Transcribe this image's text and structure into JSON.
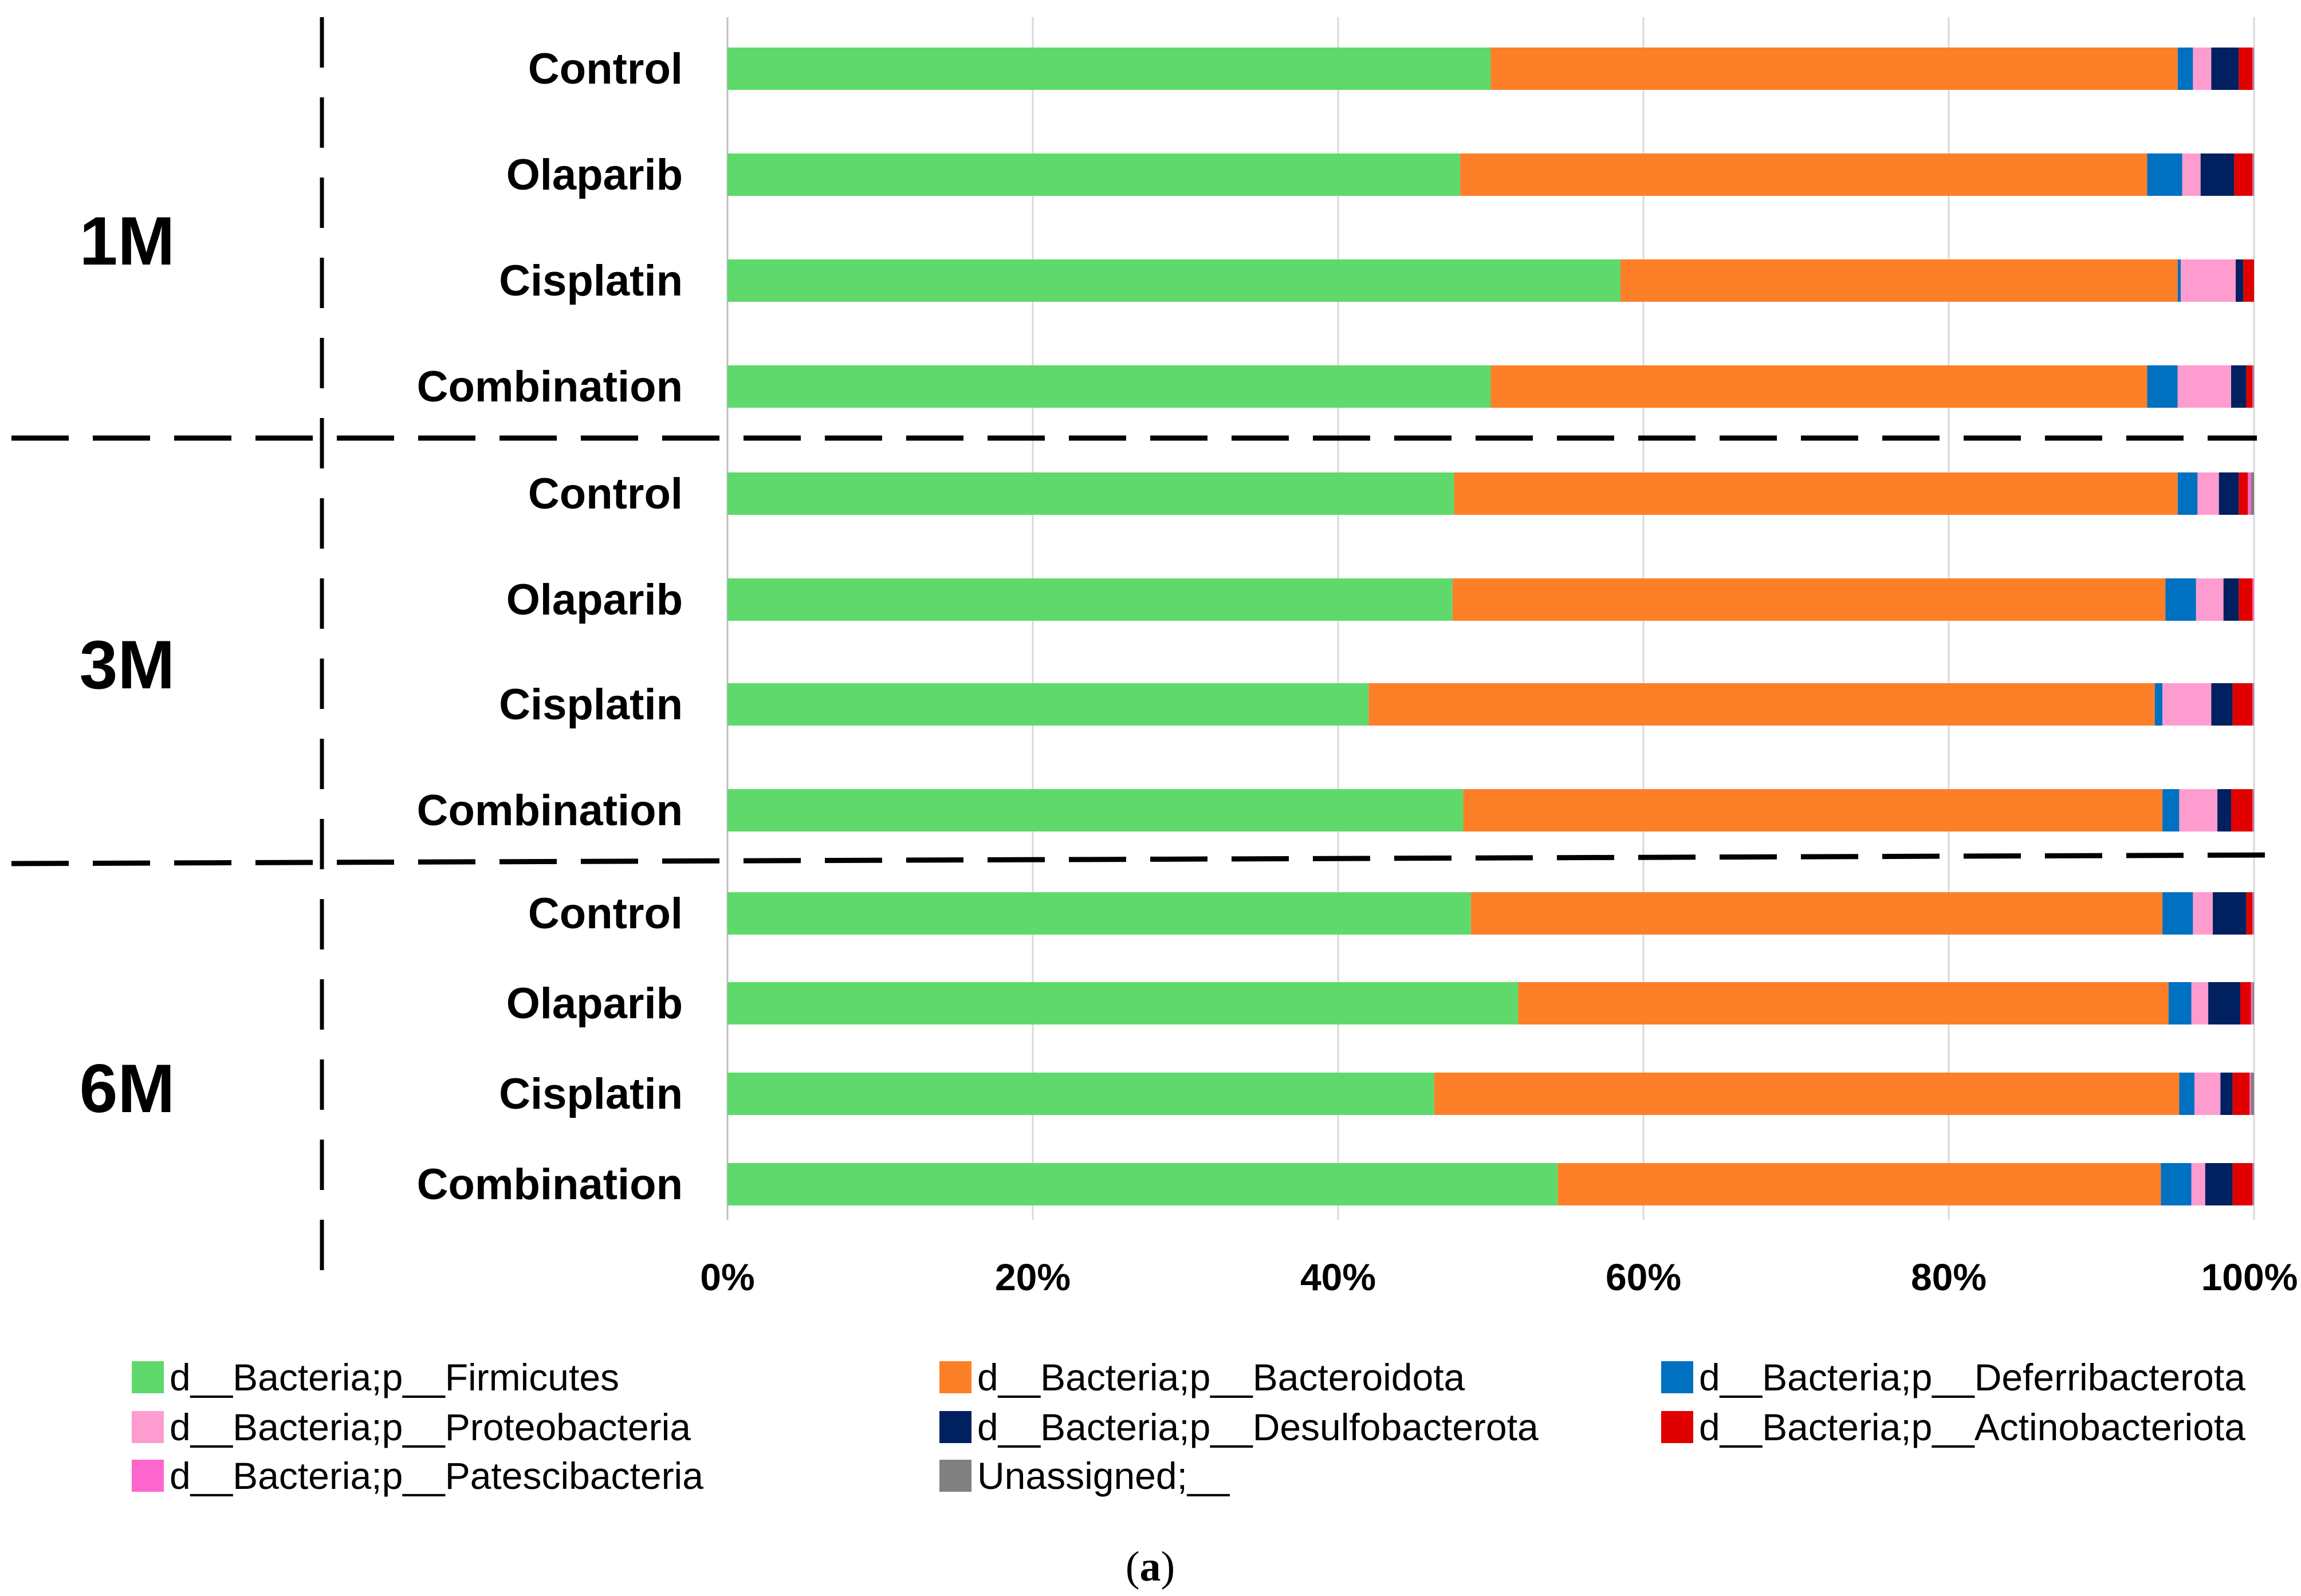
{
  "chart_data": {
    "type": "bar",
    "orientation": "horizontal",
    "stacked": "percent",
    "xlim": [
      0,
      100
    ],
    "x_ticks": [
      "0%",
      "20%",
      "40%",
      "60%",
      "80%",
      "100%"
    ],
    "grid": true,
    "legend_position": "bottom",
    "groups": [
      {
        "label": "1M",
        "categories": [
          "Control",
          "Olaparib",
          "Cisplatin",
          "Combination"
        ]
      },
      {
        "label": "3M",
        "categories": [
          "Control",
          "Olaparib",
          "Cisplatin",
          "Combination"
        ]
      },
      {
        "label": "6M",
        "categories": [
          "Control",
          "Olaparib",
          "Cisplatin",
          "Combination"
        ]
      }
    ],
    "series": [
      {
        "name": "d__Bacteria;p__Firmicutes",
        "color": "#5fd96b",
        "values": [
          50.0,
          48.0,
          58.5,
          50.0,
          47.6,
          47.5,
          42.0,
          48.2,
          48.7,
          51.8,
          46.3,
          54.4
        ]
      },
      {
        "name": "d__Bacteria;p__Bacteroidota",
        "color": "#fd7f28",
        "values": [
          45.0,
          45.0,
          36.5,
          43.0,
          47.4,
          46.7,
          51.5,
          45.8,
          45.3,
          42.6,
          48.8,
          39.5
        ]
      },
      {
        "name": "d__Bacteria;p__Deferribacterota",
        "color": "#0070c0",
        "values": [
          1.0,
          2.3,
          0.2,
          2.0,
          1.3,
          2.0,
          0.5,
          1.1,
          2.0,
          1.5,
          1.0,
          2.0
        ]
      },
      {
        "name": "d__Bacteria;p__Proteobacteria",
        "color": "#ff9ccf",
        "values": [
          1.2,
          1.2,
          3.6,
          3.5,
          1.4,
          1.8,
          3.2,
          2.5,
          1.3,
          1.1,
          1.7,
          0.9
        ]
      },
      {
        "name": "d__Bacteria;p__Desulfobacterota",
        "color": "#002060",
        "values": [
          1.8,
          2.2,
          0.5,
          1.0,
          1.3,
          1.0,
          1.4,
          0.9,
          2.2,
          2.1,
          0.8,
          1.8
        ]
      },
      {
        "name": "d__Bacteria;p__Actinobacteriota",
        "color": "#e00000",
        "values": [
          0.9,
          1.2,
          0.7,
          0.4,
          0.6,
          0.9,
          1.3,
          1.4,
          0.4,
          0.7,
          1.1,
          1.3
        ]
      },
      {
        "name": "d__Bacteria;p__Patescibacteria",
        "color": "#ff66cc",
        "values": [
          0.05,
          0.05,
          0.0,
          0.05,
          0.2,
          0.1,
          0.05,
          0.05,
          0.05,
          0.1,
          0.1,
          0.05
        ]
      },
      {
        "name": "Unassigned;__",
        "color": "#808080",
        "values": [
          0.05,
          0.05,
          0.0,
          0.05,
          0.2,
          0.0,
          0.05,
          0.05,
          0.05,
          0.1,
          0.2,
          0.05
        ]
      }
    ],
    "caption": {
      "open": "(",
      "letter": "a",
      "close": ")"
    }
  }
}
